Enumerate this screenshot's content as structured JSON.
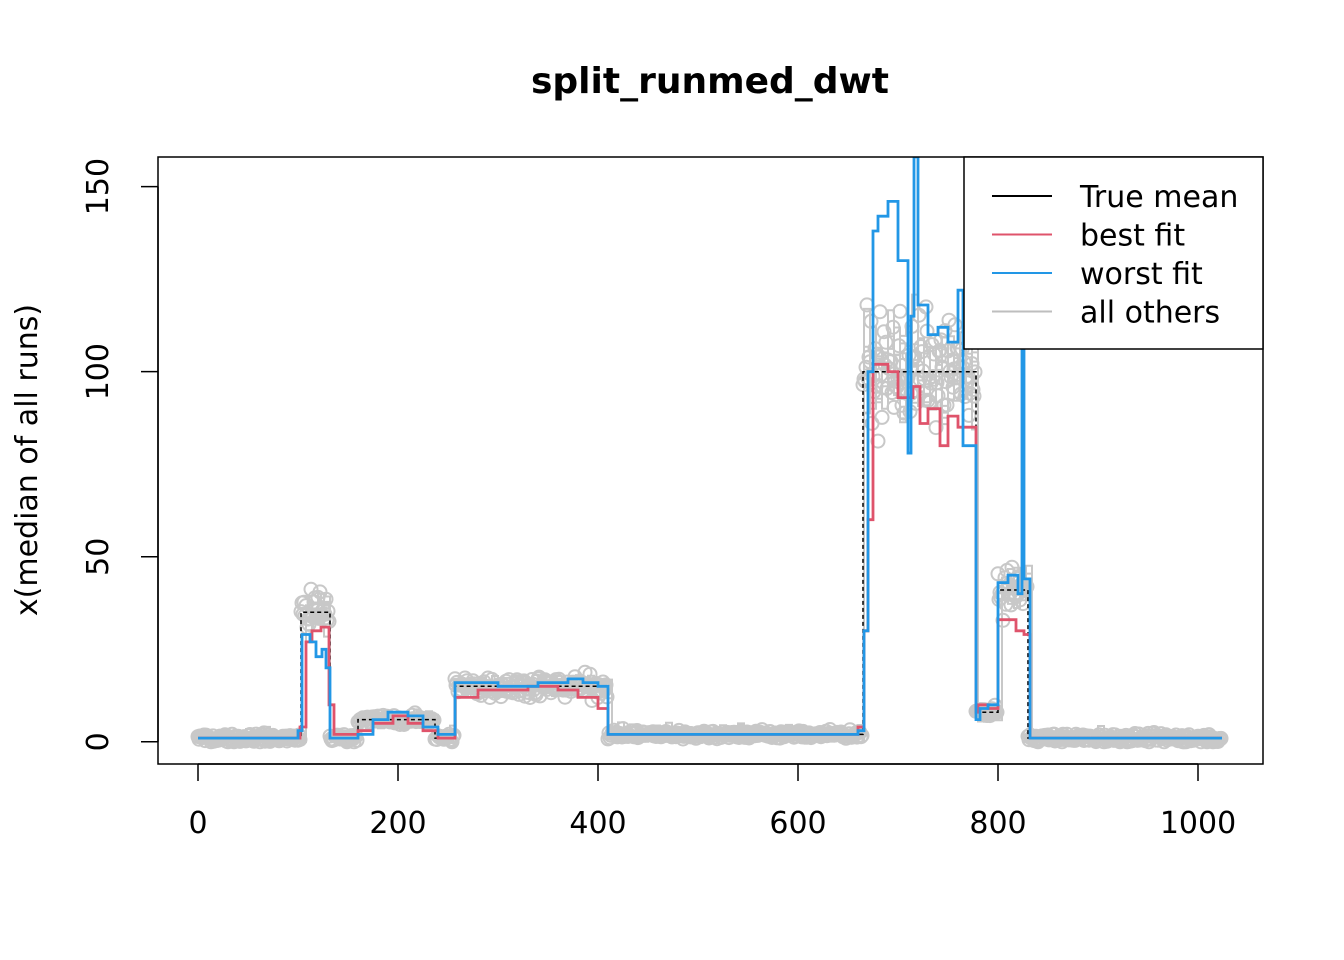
{
  "chart_data": {
    "type": "line",
    "title": "split_runmed_dwt",
    "xlabel": "",
    "ylabel": "x(median of all runs)",
    "xlim": [
      -40,
      1065
    ],
    "ylim": [
      -6,
      158
    ],
    "xticks": [
      0,
      200,
      400,
      600,
      800,
      1000
    ],
    "yticks": [
      0,
      50,
      100,
      150
    ],
    "legend": {
      "placement": "top-right"
    },
    "segments": [
      {
        "start": 0,
        "end": 103,
        "mean": 1
      },
      {
        "start": 103,
        "end": 132,
        "mean": 35
      },
      {
        "start": 132,
        "end": 160,
        "mean": 1
      },
      {
        "start": 160,
        "end": 237,
        "mean": 6
      },
      {
        "start": 237,
        "end": 257,
        "mean": 1
      },
      {
        "start": 257,
        "end": 410,
        "mean": 15
      },
      {
        "start": 410,
        "end": 665,
        "mean": 2
      },
      {
        "start": 665,
        "end": 778,
        "mean": 100
      },
      {
        "start": 778,
        "end": 800,
        "mean": 8
      },
      {
        "start": 800,
        "end": 830,
        "mean": 41
      },
      {
        "start": 830,
        "end": 1024,
        "mean": 1
      }
    ],
    "series": [
      {
        "name": "True mean",
        "color": "#000000",
        "x": [
          0,
          103,
          103,
          132,
          132,
          160,
          160,
          237,
          237,
          257,
          257,
          410,
          410,
          665,
          665,
          778,
          778,
          800,
          800,
          830,
          830,
          1024
        ],
        "y": [
          1,
          1,
          35,
          35,
          1,
          1,
          6,
          6,
          1,
          1,
          15,
          15,
          2,
          2,
          100,
          100,
          8,
          8,
          41,
          41,
          1,
          1
        ]
      },
      {
        "name": "best fit",
        "color": "#DF536B",
        "x": [
          0,
          102,
          102,
          108,
          108,
          114,
          114,
          123,
          123,
          131,
          131,
          136,
          136,
          160,
          160,
          175,
          175,
          195,
          195,
          210,
          210,
          225,
          225,
          240,
          240,
          257,
          257,
          280,
          280,
          330,
          330,
          360,
          360,
          380,
          380,
          400,
          400,
          410,
          410,
          450,
          450,
          660,
          660,
          666,
          666,
          670,
          670,
          675,
          675,
          690,
          690,
          700,
          700,
          715,
          715,
          722,
          722,
          730,
          730,
          742,
          742,
          750,
          750,
          760,
          760,
          778,
          778,
          780,
          780,
          790,
          790,
          800,
          800,
          818,
          818,
          826,
          826,
          832,
          832,
          1024
        ],
        "y": [
          1,
          1,
          4,
          4,
          27,
          27,
          30,
          30,
          31,
          31,
          10,
          10,
          2,
          2,
          3,
          3,
          5,
          5,
          7,
          7,
          5,
          5,
          3,
          3,
          1,
          1,
          12,
          12,
          14,
          14,
          15,
          15,
          14,
          14,
          12,
          12,
          9,
          9,
          2,
          2,
          2,
          2,
          4,
          4,
          30,
          30,
          60,
          60,
          102,
          102,
          100,
          100,
          93,
          93,
          96,
          96,
          86,
          86,
          90,
          90,
          80,
          80,
          88,
          88,
          85,
          85,
          8,
          8,
          10,
          10,
          9,
          9,
          33,
          33,
          30,
          30,
          29,
          29,
          1,
          1
        ]
      },
      {
        "name": "worst fit",
        "color": "#2297E6",
        "x": [
          0,
          100,
          100,
          104,
          104,
          112,
          112,
          118,
          118,
          124,
          124,
          128,
          128,
          132,
          132,
          160,
          160,
          175,
          175,
          190,
          190,
          210,
          210,
          225,
          225,
          240,
          240,
          257,
          257,
          300,
          300,
          340,
          340,
          370,
          370,
          385,
          385,
          400,
          400,
          410,
          410,
          450,
          450,
          660,
          660,
          666,
          666,
          670,
          670,
          675,
          675,
          680,
          680,
          690,
          690,
          700,
          700,
          710,
          710,
          713,
          713,
          716,
          716,
          720,
          720,
          730,
          730,
          740,
          740,
          750,
          750,
          760,
          760,
          765,
          765,
          778,
          778,
          782,
          782,
          790,
          790,
          800,
          800,
          810,
          810,
          820,
          820,
          824,
          824,
          826,
          826,
          832,
          832,
          1024
        ],
        "y": [
          1,
          1,
          3,
          3,
          29,
          29,
          27,
          27,
          23,
          23,
          25,
          25,
          20,
          20,
          1,
          1,
          2,
          2,
          6,
          6,
          8,
          8,
          7,
          7,
          4,
          4,
          2,
          2,
          16,
          16,
          15,
          15,
          16,
          16,
          17,
          17,
          16,
          16,
          15,
          15,
          2,
          2,
          2,
          2,
          3,
          3,
          30,
          30,
          100,
          100,
          138,
          138,
          142,
          142,
          146,
          146,
          130,
          130,
          78,
          78,
          115,
          115,
          158,
          158,
          118,
          118,
          110,
          110,
          112,
          112,
          108,
          108,
          122,
          122,
          80,
          80,
          6,
          6,
          9,
          9,
          10,
          10,
          43,
          43,
          45,
          45,
          40,
          40,
          150,
          150,
          44,
          44,
          1,
          1
        ]
      }
    ]
  },
  "legend_items": [
    {
      "label": "True mean",
      "color": "#000000"
    },
    {
      "label": "best fit",
      "color": "#DF536B"
    },
    {
      "label": "worst fit",
      "color": "#2297E6"
    },
    {
      "label": "all others",
      "color": "#BEBEBE"
    }
  ],
  "colors": {
    "others": "#C8C8C8"
  }
}
